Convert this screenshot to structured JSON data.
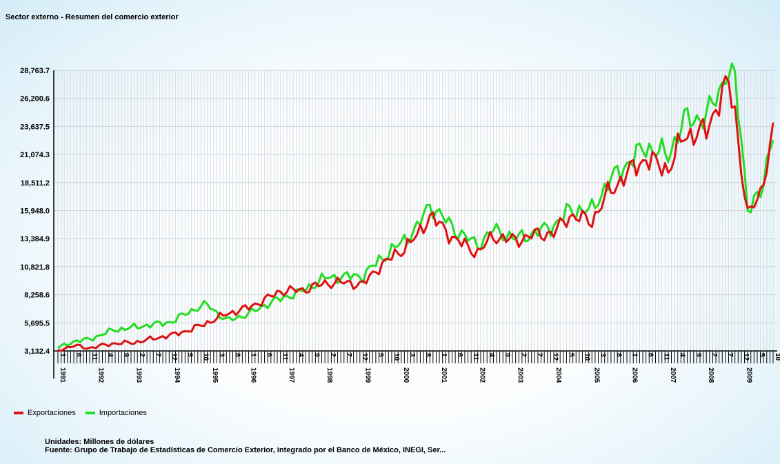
{
  "chart_data": {
    "type": "line",
    "title": "Sector externo - Resumen del comercio exterior",
    "y_ticks": [
      "3,132.4",
      "5,695.5",
      "8,258.6",
      "10,821.8",
      "13,384.9",
      "15,948.0",
      "18,511.2",
      "21,074.3",
      "23,637.5",
      "26,200.6",
      "28,763.7"
    ],
    "ylim": [
      3132.4,
      28763.7
    ],
    "x_range": [
      "1991-01",
      "2009-10"
    ],
    "x_year_labels": [
      "1991",
      "1992",
      "1993",
      "1994",
      "1995",
      "1996",
      "1997",
      "1998",
      "1999",
      "2000",
      "2001",
      "2002",
      "2003",
      "2004",
      "2005",
      "2006",
      "2007",
      "2008",
      "2009"
    ],
    "x_month_labels": [
      "1",
      "6",
      "11",
      "4",
      "9",
      "2",
      "7",
      "12",
      "5",
      "10",
      "3",
      "8",
      "1",
      "6",
      "11",
      "4",
      "9",
      "2",
      "7",
      "12",
      "5",
      "10",
      "3",
      "8",
      "1",
      "6",
      "11",
      "4",
      "9",
      "2",
      "7",
      "12",
      "5",
      "10",
      "3",
      "8",
      "1",
      "6",
      "11",
      "4",
      "9",
      "2",
      "7",
      "12",
      "5",
      "10"
    ],
    "grid": true,
    "legend_position": "bottom-left",
    "series": [
      {
        "name": "Exportaciones",
        "color": "#dd1111",
        "keypoints": [
          [
            "1991-01",
            3200
          ],
          [
            "1991-06",
            3600
          ],
          [
            "1991-11",
            3400
          ],
          [
            "1992-06",
            3800
          ],
          [
            "1993-01",
            3900
          ],
          [
            "1993-06",
            4200
          ],
          [
            "1994-01",
            4600
          ],
          [
            "1994-06",
            5000
          ],
          [
            "1994-12",
            5700
          ],
          [
            "1995-06",
            6500
          ],
          [
            "1996-01",
            7100
          ],
          [
            "1996-06",
            7800
          ],
          [
            "1996-11",
            8600
          ],
          [
            "1997-06",
            8700
          ],
          [
            "1998-01",
            9300
          ],
          [
            "1998-06",
            9400
          ],
          [
            "1999-01",
            9200
          ],
          [
            "1999-06",
            10800
          ],
          [
            "2000-01",
            12300
          ],
          [
            "2000-06",
            13600
          ],
          [
            "2000-10",
            15500
          ],
          [
            "2001-06",
            13300
          ],
          [
            "2002-01",
            12100
          ],
          [
            "2002-06",
            13600
          ],
          [
            "2003-01",
            13200
          ],
          [
            "2003-06",
            13700
          ],
          [
            "2004-01",
            13900
          ],
          [
            "2004-06",
            15500
          ],
          [
            "2005-01",
            15000
          ],
          [
            "2005-06",
            17500
          ],
          [
            "2006-01",
            19600
          ],
          [
            "2006-06",
            20700
          ],
          [
            "2007-01",
            19700
          ],
          [
            "2007-06",
            22800
          ],
          [
            "2008-01",
            23200
          ],
          [
            "2008-06",
            26700
          ],
          [
            "2008-08",
            27400
          ],
          [
            "2008-10",
            25000
          ],
          [
            "2008-12",
            20000
          ],
          [
            "2009-02",
            15400
          ],
          [
            "2009-06",
            17600
          ],
          [
            "2009-10",
            22900
          ]
        ]
      },
      {
        "name": "Importaciones",
        "color": "#22dd22",
        "keypoints": [
          [
            "1991-01",
            3400
          ],
          [
            "1991-06",
            4000
          ],
          [
            "1991-11",
            4200
          ],
          [
            "1992-06",
            5000
          ],
          [
            "1993-01",
            5300
          ],
          [
            "1993-06",
            5500
          ],
          [
            "1994-01",
            5800
          ],
          [
            "1994-06",
            6700
          ],
          [
            "1994-12",
            7400
          ],
          [
            "1995-06",
            5900
          ],
          [
            "1996-01",
            6500
          ],
          [
            "1996-06",
            7300
          ],
          [
            "1996-11",
            7900
          ],
          [
            "1997-06",
            8600
          ],
          [
            "1998-01",
            9800
          ],
          [
            "1998-06",
            9900
          ],
          [
            "1999-01",
            10000
          ],
          [
            "1999-06",
            11400
          ],
          [
            "2000-01",
            13000
          ],
          [
            "2000-06",
            14400
          ],
          [
            "2000-10",
            16500
          ],
          [
            "2001-06",
            14200
          ],
          [
            "2002-01",
            12800
          ],
          [
            "2002-06",
            14200
          ],
          [
            "2003-01",
            13400
          ],
          [
            "2003-06",
            13800
          ],
          [
            "2004-01",
            14600
          ],
          [
            "2004-06",
            16000
          ],
          [
            "2005-01",
            16000
          ],
          [
            "2005-06",
            18500
          ],
          [
            "2006-01",
            20500
          ],
          [
            "2006-06",
            21800
          ],
          [
            "2007-01",
            21000
          ],
          [
            "2007-06",
            24200
          ],
          [
            "2008-01",
            24500
          ],
          [
            "2008-06",
            27500
          ],
          [
            "2008-07",
            28700
          ],
          [
            "2008-10",
            27800
          ],
          [
            "2008-12",
            22500
          ],
          [
            "2009-02",
            16300
          ],
          [
            "2009-06",
            17200
          ],
          [
            "2009-10",
            23300
          ]
        ]
      }
    ]
  },
  "legend": [
    {
      "label": "Exportaciones",
      "color": "#dd1111"
    },
    {
      "label": "Importaciones",
      "color": "#22dd22"
    }
  ],
  "footer": {
    "units": "Unidades: Millones de dólares",
    "source": "Fuente: Grupo de Trabajo de Estadísticas de Comercio Exterior, integrado por el Banco de México, INEGI, Ser..."
  }
}
